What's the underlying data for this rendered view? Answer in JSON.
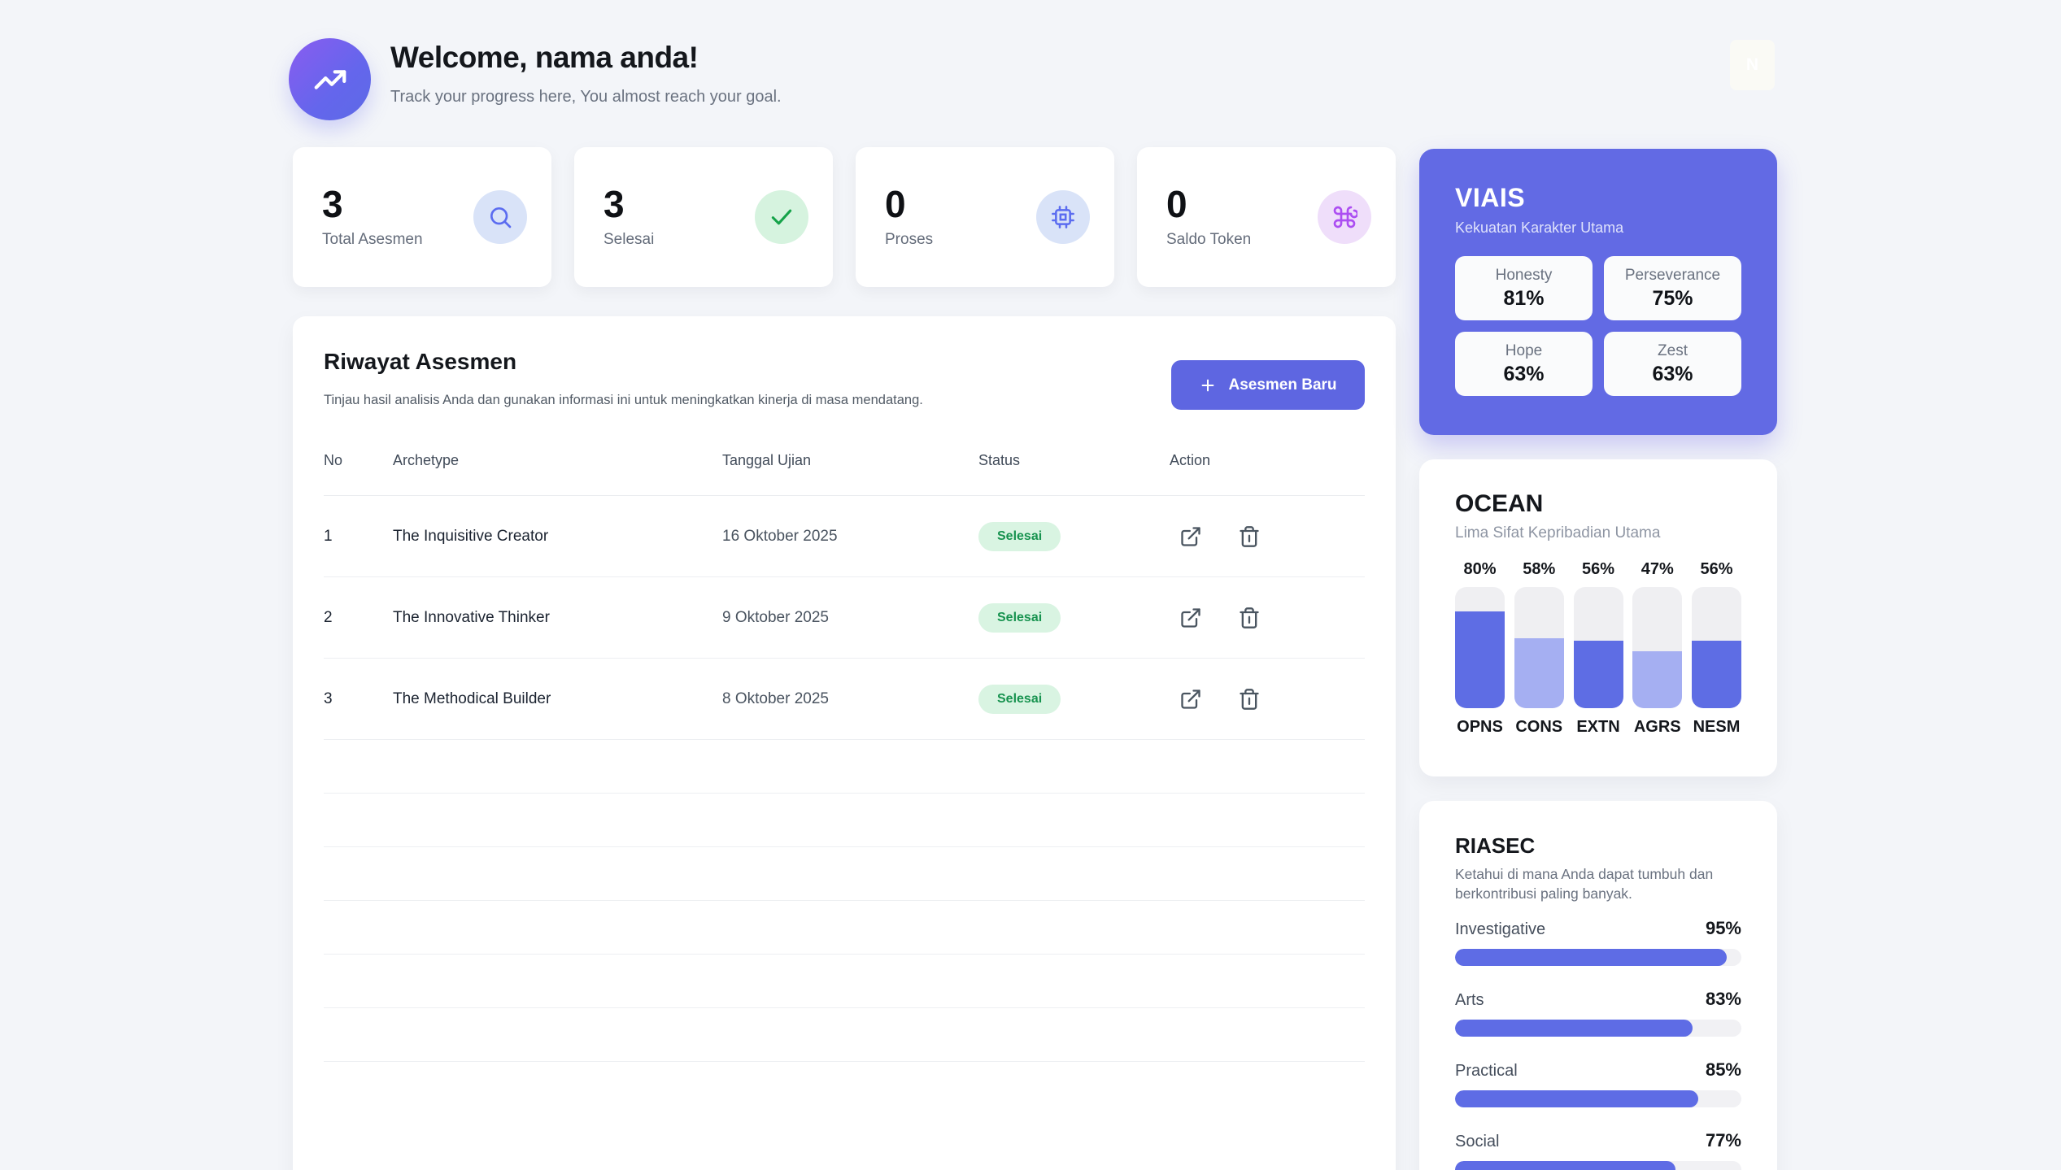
{
  "header": {
    "title": "Welcome, nama anda!",
    "subtitle": "Track your progress here, You almost reach your goal.",
    "avatar_letter": "N"
  },
  "stats": [
    {
      "value": "3",
      "label": "Total Asesmen",
      "icon": "search-icon"
    },
    {
      "value": "3",
      "label": "Selesai",
      "icon": "check-icon"
    },
    {
      "value": "0",
      "label": "Proses",
      "icon": "cpu-icon"
    },
    {
      "value": "0",
      "label": "Saldo Token",
      "icon": "command-icon"
    }
  ],
  "history": {
    "title": "Riwayat Asesmen",
    "subtitle": "Tinjau hasil analisis Anda dan gunakan informasi ini untuk meningkatkan kinerja di masa mendatang.",
    "new_button_label": "Asesmen Baru",
    "columns": [
      "No",
      "Archetype",
      "Tanggal Ujian",
      "Status",
      "Action"
    ],
    "rows": [
      {
        "no": "1",
        "archetype": "The Inquisitive Creator",
        "date": "16 Oktober 2025",
        "status": "Selesai"
      },
      {
        "no": "2",
        "archetype": "The Innovative Thinker",
        "date": "9 Oktober 2025",
        "status": "Selesai"
      },
      {
        "no": "3",
        "archetype": "The Methodical Builder",
        "date": "8 Oktober 2025",
        "status": "Selesai"
      }
    ],
    "empty_rows": 6
  },
  "viais": {
    "title": "VIAIS",
    "subtitle": "Kekuatan Karakter Utama",
    "items": [
      {
        "label": "Honesty",
        "value": "81%"
      },
      {
        "label": "Perseverance",
        "value": "75%"
      },
      {
        "label": "Hope",
        "value": "63%"
      },
      {
        "label": "Zest",
        "value": "63%"
      }
    ]
  },
  "ocean": {
    "type": "bar",
    "title": "OCEAN",
    "subtitle": "Lima Sifat Kepribadian Utama",
    "categories": [
      "OPNS",
      "CONS",
      "EXTN",
      "AGRS",
      "NESM"
    ],
    "values": [
      80,
      58,
      56,
      47,
      56
    ],
    "pct_labels": [
      "80%",
      "58%",
      "56%",
      "47%",
      "56%"
    ],
    "colors": [
      "#5e6de4",
      "#a5aff2",
      "#5e6de4",
      "#a5aff2",
      "#5e6de4"
    ],
    "ylim": [
      0,
      100
    ]
  },
  "riasec": {
    "type": "bar",
    "title": "RIASEC",
    "subtitle": "Ketahui di mana Anda dapat tumbuh dan berkontribusi paling banyak.",
    "items": [
      {
        "label": "Investigative",
        "value": 95,
        "display": "95%"
      },
      {
        "label": "Arts",
        "value": 83,
        "display": "83%"
      },
      {
        "label": "Practical",
        "value": 85,
        "display": "85%"
      },
      {
        "label": "Social",
        "value": 77,
        "display": "77%"
      }
    ]
  },
  "colors": {
    "accent": "#5e66e1",
    "sidebar_card": "#626ae4",
    "bar_dark": "#5e6de4",
    "bar_light": "#a5aff2",
    "badge_bg": "#d9f4e2",
    "badge_text": "#17934f",
    "page_bg": "#f3f5f9"
  }
}
